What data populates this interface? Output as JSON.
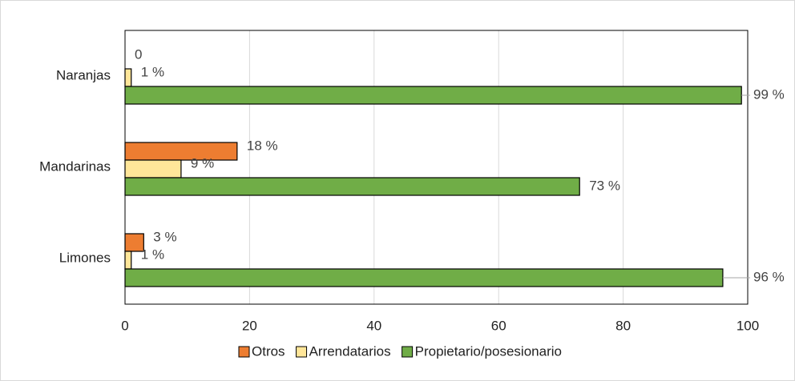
{
  "chart_data": {
    "type": "hbar",
    "categories": [
      "Naranjas",
      "Mandarinas",
      "Limones"
    ],
    "series": [
      {
        "name": "Otros",
        "color": "#ed7d31",
        "values": [
          0,
          18,
          3
        ],
        "value_labels": [
          "0",
          "18 %",
          "3 %"
        ]
      },
      {
        "name": "Arrendatarios",
        "color": "#ffe699",
        "values": [
          1,
          9,
          1
        ],
        "value_labels": [
          "1 %",
          "9 %",
          "1 %"
        ]
      },
      {
        "name": "Propietario/posesionario",
        "color": "#70ad47",
        "values": [
          99,
          73,
          96
        ],
        "value_labels": [
          "99 %",
          "73 %",
          "96 %"
        ]
      }
    ],
    "xlim": [
      0,
      100
    ],
    "xticks": [
      0,
      20,
      40,
      60,
      80,
      100
    ],
    "grid": true,
    "legend": "bottom"
  }
}
